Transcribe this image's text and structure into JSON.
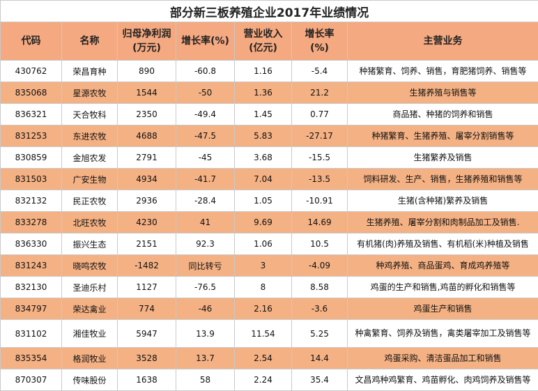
{
  "title": "部分新三板养殖企业2017年业绩情况",
  "headers": {
    "code": "代码",
    "name": "名称",
    "profit": "归母净利润(万元)",
    "profit_growth": "增长率(%)",
    "revenue": "营业收入(亿元)",
    "revenue_growth": "增长率(%)",
    "business": "主营业务"
  },
  "rows": [
    {
      "code": "430762",
      "name": "荣昌育种",
      "profit": "890",
      "profit_growth": "-60.8",
      "revenue": "1.16",
      "revenue_growth": "-5.4",
      "business": "种猪繁育、饲养、销售，育肥猪饲养、销售等"
    },
    {
      "code": "835068",
      "name": "星源农牧",
      "profit": "1544",
      "profit_growth": "-50",
      "revenue": "1.36",
      "revenue_growth": "21.2",
      "business": "生猪养殖与销售等"
    },
    {
      "code": "836321",
      "name": "天合牧科",
      "profit": "2350",
      "profit_growth": "-49.4",
      "revenue": "1.45",
      "revenue_growth": "0.77",
      "business": "商品猪、种猪的饲养和销售"
    },
    {
      "code": "831253",
      "name": "东进农牧",
      "profit": "4688",
      "profit_growth": "-47.5",
      "revenue": "5.83",
      "revenue_growth": "-27.17",
      "business": "种猪繁育、生猪养殖、屠宰分割销售等"
    },
    {
      "code": "830859",
      "name": "金旭农发",
      "profit": "2791",
      "profit_growth": "-45",
      "revenue": "3.68",
      "revenue_growth": "-15.5",
      "business": "生猪繁养及销售"
    },
    {
      "code": "831503",
      "name": "广安生物",
      "profit": "4934",
      "profit_growth": "-41.7",
      "revenue": "7.04",
      "revenue_growth": "-13.5",
      "business": "饲料研发、生产、销售，生猪养殖和销售等"
    },
    {
      "code": "832132",
      "name": "民正农牧",
      "profit": "2936",
      "profit_growth": "-28.4",
      "revenue": "1.05",
      "revenue_growth": "-10.91",
      "business": "生猪(含种猪)繁养及销售"
    },
    {
      "code": "833278",
      "name": "北旺农牧",
      "profit": "4230",
      "profit_growth": "41",
      "revenue": "9.69",
      "revenue_growth": "14.69",
      "business": "生猪养殖、屠宰分割和肉制品加工及销售."
    },
    {
      "code": "836330",
      "name": "振兴生态",
      "profit": "2151",
      "profit_growth": "92.3",
      "revenue": "1.06",
      "revenue_growth": "10.5",
      "business": "有机猪(肉)养殖及销售、有机稻(米)种植及销售"
    },
    {
      "code": "831243",
      "name": "晓鸣农牧",
      "profit": "-1482",
      "profit_growth": "同比转亏",
      "revenue": "3",
      "revenue_growth": "-4.09",
      "business": "种鸡养殖、商品蛋鸡、育成鸡养殖等"
    },
    {
      "code": "832130",
      "name": "圣迪乐村",
      "profit": "1127",
      "profit_growth": "-76.5",
      "revenue": "8",
      "revenue_growth": "8.58",
      "business": "鸡蛋的生产和销售,鸡苗的孵化和销售等"
    },
    {
      "code": "834797",
      "name": "荣达禽业",
      "profit": "774",
      "profit_growth": "-46",
      "revenue": "2.16",
      "revenue_growth": "-3.6",
      "business": "鸡蛋生产和销售"
    },
    {
      "code": "831102",
      "name": "湘佳牧业",
      "profit": "5947",
      "profit_growth": "13.9",
      "revenue": "11.54",
      "revenue_growth": "5.25",
      "business": "种禽繁育、饲养及销售，禽类屠宰加工及销售等"
    },
    {
      "code": "835354",
      "name": "格润牧业",
      "profit": "3528",
      "profit_growth": "13.7",
      "revenue": "2.54",
      "revenue_growth": "14.4",
      "business": "鸡蛋采购、清洁蛋品加工和销售"
    },
    {
      "code": "870307",
      "name": "传味股份",
      "profit": "1638",
      "profit_growth": "58",
      "revenue": "2.24",
      "revenue_growth": "35.4",
      "business": "文昌鸡种鸡繁育、鸡苗孵化、肉鸡饲养及销售等"
    }
  ],
  "colors": {
    "header_bg": "#f4a980",
    "alt_row_bg": "#f4b184",
    "border": "#c9c9c9"
  }
}
